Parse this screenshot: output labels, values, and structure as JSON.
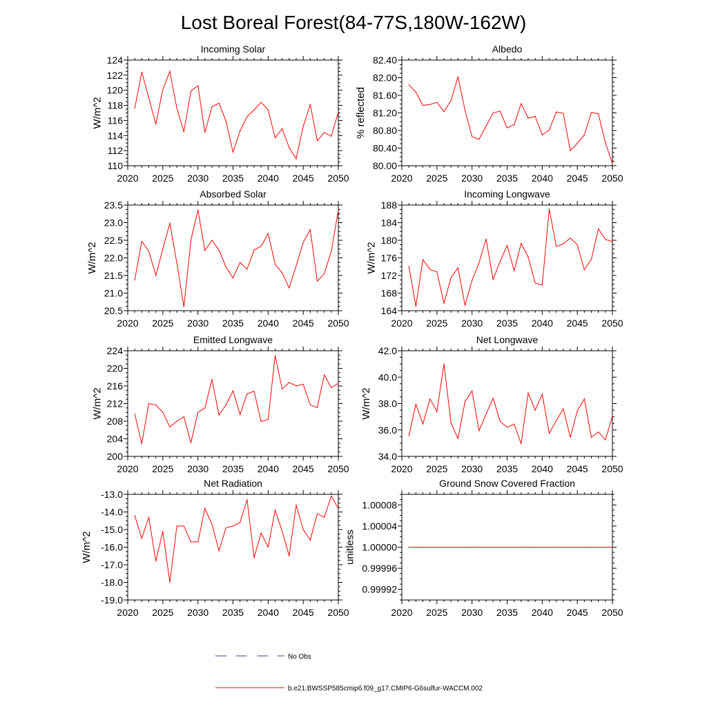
{
  "figure_title": "Lost Boreal Forest(84-77S,180W-162W)",
  "colors": {
    "series": "#ff0000",
    "obs": "#3a3aa0",
    "axis": "#000000"
  },
  "legend": {
    "obs_label": "No Obs",
    "model_label": "b.e21.BWSSP585cmip6.f09_g17.CMIP6-G6sulfur-WACCM.002"
  },
  "chart_data": [
    {
      "type": "line",
      "title": "Incoming Solar",
      "ylabel": "W/m^2",
      "xlim": [
        2020,
        2050
      ],
      "ylim": [
        110,
        124
      ],
      "xticks": [
        2020,
        2025,
        2030,
        2035,
        2040,
        2045,
        2050
      ],
      "yticks": [
        "110",
        "112",
        "114",
        "116",
        "118",
        "120",
        "122",
        "124"
      ],
      "series": [
        {
          "x": [
            2021,
            2022,
            2023,
            2024,
            2025,
            2026,
            2027,
            2028,
            2029,
            2030,
            2031,
            2032,
            2033,
            2034,
            2035,
            2036,
            2037,
            2038,
            2039,
            2040,
            2041,
            2042,
            2043,
            2044,
            2045,
            2046,
            2047,
            2048,
            2049,
            2050
          ],
          "y": [
            117.6,
            122.4,
            119.0,
            115.5,
            120.1,
            122.5,
            117.6,
            114.5,
            119.9,
            120.6,
            114.4,
            117.8,
            118.3,
            115.9,
            111.8,
            114.6,
            116.5,
            117.4,
            118.4,
            117.4,
            113.7,
            114.9,
            112.4,
            110.9,
            115.2,
            118.1,
            113.3,
            114.4,
            113.9,
            117.1
          ]
        }
      ]
    },
    {
      "type": "line",
      "title": "Albedo",
      "ylabel": "% reflected",
      "xlim": [
        2020,
        2050
      ],
      "ylim": [
        80.0,
        82.4
      ],
      "xticks": [
        2020,
        2025,
        2030,
        2035,
        2040,
        2045,
        2050
      ],
      "yticks": [
        "80.00",
        "80.40",
        "80.80",
        "81.20",
        "81.60",
        "82.00",
        "82.40"
      ],
      "series": [
        {
          "x": [
            2021,
            2022,
            2023,
            2024,
            2025,
            2026,
            2027,
            2028,
            2029,
            2030,
            2031,
            2032,
            2033,
            2034,
            2035,
            2036,
            2037,
            2038,
            2039,
            2040,
            2041,
            2042,
            2043,
            2044,
            2045,
            2046,
            2047,
            2048,
            2049,
            2050
          ],
          "y": [
            81.84,
            81.67,
            81.37,
            81.39,
            81.44,
            81.23,
            81.48,
            82.02,
            81.26,
            80.66,
            80.6,
            80.9,
            81.2,
            81.24,
            80.86,
            80.93,
            81.41,
            81.08,
            81.12,
            80.7,
            80.81,
            81.22,
            81.19,
            80.34,
            80.51,
            80.7,
            81.21,
            81.18,
            80.52,
            80.05
          ]
        }
      ]
    },
    {
      "type": "line",
      "title": "Absorbed Solar",
      "ylabel": "W/m^2",
      "xlim": [
        2020,
        2050
      ],
      "ylim": [
        20.5,
        23.5
      ],
      "xticks": [
        2020,
        2025,
        2030,
        2035,
        2040,
        2045,
        2050
      ],
      "yticks": [
        "20.5",
        "21.0",
        "21.5",
        "22.0",
        "22.5",
        "23.0",
        "23.5"
      ],
      "series": [
        {
          "x": [
            2021,
            2022,
            2023,
            2024,
            2025,
            2026,
            2027,
            2028,
            2029,
            2030,
            2031,
            2032,
            2033,
            2034,
            2035,
            2036,
            2037,
            2038,
            2039,
            2040,
            2041,
            2042,
            2043,
            2044,
            2045,
            2046,
            2047,
            2048,
            2049,
            2050
          ],
          "y": [
            21.37,
            22.47,
            22.19,
            21.5,
            22.25,
            22.99,
            21.85,
            20.61,
            22.5,
            23.36,
            22.21,
            22.5,
            22.22,
            21.74,
            21.43,
            21.87,
            21.68,
            22.22,
            22.33,
            22.69,
            21.82,
            21.57,
            21.15,
            21.78,
            22.44,
            22.8,
            21.34,
            21.55,
            22.19,
            23.35
          ]
        }
      ]
    },
    {
      "type": "line",
      "title": "Incoming Longwave",
      "ylabel": "W/m^2",
      "xlim": [
        2020,
        2050
      ],
      "ylim": [
        164,
        188
      ],
      "xticks": [
        2020,
        2025,
        2030,
        2035,
        2040,
        2045,
        2050
      ],
      "yticks": [
        "164",
        "168",
        "172",
        "176",
        "180",
        "184",
        "188"
      ],
      "series": [
        {
          "x": [
            2021,
            2022,
            2023,
            2024,
            2025,
            2026,
            2027,
            2028,
            2029,
            2030,
            2031,
            2032,
            2033,
            2034,
            2035,
            2036,
            2037,
            2038,
            2039,
            2040,
            2041,
            2042,
            2043,
            2044,
            2045,
            2046,
            2047,
            2048,
            2049,
            2050
          ],
          "y": [
            174.1,
            165.0,
            175.6,
            173.4,
            172.8,
            165.7,
            171.5,
            173.7,
            165.2,
            170.9,
            174.9,
            180.3,
            171.1,
            175.2,
            178.8,
            173.1,
            179.3,
            176.2,
            170.3,
            169.8,
            187.1,
            178.6,
            179.2,
            180.5,
            179.0,
            173.3,
            175.7,
            182.6,
            180.2,
            179.7
          ]
        }
      ]
    },
    {
      "type": "line",
      "title": "Emitted Longwave",
      "ylabel": "W/m^2",
      "xlim": [
        2020,
        2050
      ],
      "ylim": [
        200,
        224
      ],
      "xticks": [
        2020,
        2025,
        2030,
        2035,
        2040,
        2045,
        2050
      ],
      "yticks": [
        "200",
        "204",
        "208",
        "212",
        "216",
        "220",
        "224"
      ],
      "series": [
        {
          "x": [
            2021,
            2022,
            2023,
            2024,
            2025,
            2026,
            2027,
            2028,
            2029,
            2030,
            2031,
            2032,
            2033,
            2034,
            2035,
            2036,
            2037,
            2038,
            2039,
            2040,
            2041,
            2042,
            2043,
            2044,
            2045,
            2046,
            2047,
            2048,
            2049,
            2050
          ],
          "y": [
            209.6,
            202.9,
            212.0,
            211.7,
            210.0,
            206.7,
            208.0,
            209.0,
            203.1,
            210.0,
            211.0,
            217.5,
            209.4,
            211.7,
            214.9,
            209.5,
            214.2,
            214.8,
            207.9,
            208.4,
            222.9,
            215.3,
            216.8,
            216.0,
            216.4,
            211.7,
            211.1,
            218.5,
            215.6,
            216.6
          ]
        }
      ]
    },
    {
      "type": "line",
      "title": "Net Longwave",
      "ylabel": "W/m^2",
      "xlim": [
        2020,
        2050
      ],
      "ylim": [
        34.0,
        42.0
      ],
      "xticks": [
        2020,
        2025,
        2030,
        2035,
        2040,
        2045,
        2050
      ],
      "yticks": [
        "34.0",
        "36.0",
        "38.0",
        "40.0",
        "42.0"
      ],
      "series": [
        {
          "x": [
            2021,
            2022,
            2023,
            2024,
            2025,
            2026,
            2027,
            2028,
            2029,
            2030,
            2031,
            2032,
            2033,
            2034,
            2035,
            2036,
            2037,
            2038,
            2039,
            2040,
            2041,
            2042,
            2043,
            2044,
            2045,
            2046,
            2047,
            2048,
            2049,
            2050
          ],
          "y": [
            35.55,
            37.95,
            36.45,
            38.35,
            37.4,
            41.0,
            36.55,
            35.35,
            38.15,
            38.95,
            35.95,
            37.2,
            38.4,
            36.65,
            36.2,
            36.45,
            34.95,
            38.8,
            37.5,
            38.7,
            35.75,
            36.7,
            37.6,
            35.45,
            37.45,
            38.35,
            35.45,
            35.85,
            35.25,
            37.05
          ]
        }
      ]
    },
    {
      "type": "line",
      "title": "Net Radiation",
      "ylabel": "W/m^2",
      "xlim": [
        2020,
        2050
      ],
      "ylim": [
        -19.0,
        -13.0
      ],
      "xticks": [
        2020,
        2025,
        2030,
        2035,
        2040,
        2045,
        2050
      ],
      "yticks": [
        "-19.0",
        "-18.0",
        "-17.0",
        "-16.0",
        "-15.0",
        "-14.0",
        "-13.0"
      ],
      "series": [
        {
          "x": [
            2021,
            2022,
            2023,
            2024,
            2025,
            2026,
            2027,
            2028,
            2029,
            2030,
            2031,
            2032,
            2033,
            2034,
            2035,
            2036,
            2037,
            2038,
            2039,
            2040,
            2041,
            2042,
            2043,
            2044,
            2045,
            2046,
            2047,
            2048,
            2049,
            2050
          ],
          "y": [
            -14.2,
            -15.5,
            -14.3,
            -16.8,
            -15.1,
            -18.0,
            -14.8,
            -14.8,
            -15.7,
            -15.7,
            -13.8,
            -14.7,
            -16.2,
            -14.9,
            -14.8,
            -14.6,
            -13.3,
            -16.6,
            -15.2,
            -16.0,
            -13.9,
            -15.1,
            -16.5,
            -13.6,
            -15.0,
            -15.6,
            -14.1,
            -14.3,
            -13.1,
            -13.8
          ]
        }
      ]
    },
    {
      "type": "line",
      "title": "Ground Snow Covered Fraction",
      "ylabel": "unitless",
      "xlim": [
        2020,
        2050
      ],
      "ylim": [
        0.9999,
        1.0001
      ],
      "xticks": [
        2020,
        2025,
        2030,
        2035,
        2040,
        2045,
        2050
      ],
      "yticks": [
        "0.99992",
        "0.99996",
        "1.00000",
        "1.00004",
        "1.00008"
      ],
      "series": [
        {
          "x": [
            2021,
            2022,
            2023,
            2024,
            2025,
            2026,
            2027,
            2028,
            2029,
            2030,
            2031,
            2032,
            2033,
            2034,
            2035,
            2036,
            2037,
            2038,
            2039,
            2040,
            2041,
            2042,
            2043,
            2044,
            2045,
            2046,
            2047,
            2048,
            2049,
            2050
          ],
          "y": [
            1,
            1,
            1,
            1,
            1,
            1,
            1,
            1,
            1,
            1,
            1,
            1,
            1,
            1,
            1,
            1,
            1,
            1,
            1,
            1,
            1,
            1,
            1,
            1,
            1,
            1,
            1,
            1,
            1,
            1
          ]
        }
      ]
    }
  ]
}
